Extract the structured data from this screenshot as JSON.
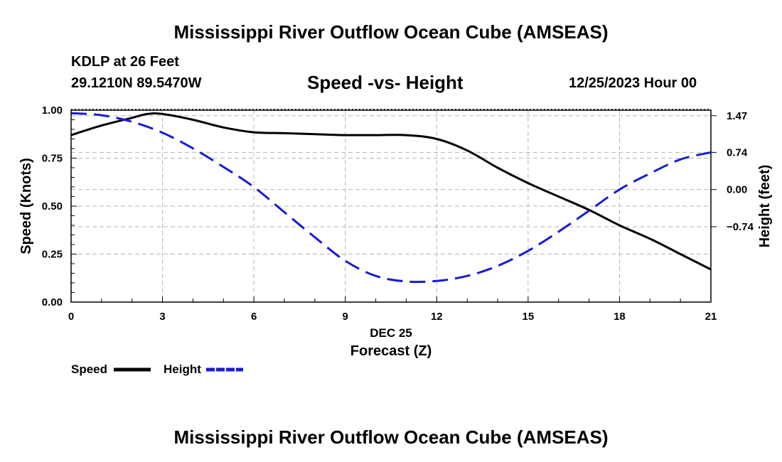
{
  "page": {
    "title": "Mississippi River Outflow Ocean Cube (AMSEAS)",
    "footer_title": "Mississippi River Outflow Ocean Cube (AMSEAS)",
    "station": "KDLP at 26 Feet",
    "coords": "29.1210N  89.5470W",
    "datetime": "12/25/2023 Hour 00"
  },
  "legend": {
    "speed_label": "Speed",
    "height_label": "Height"
  },
  "colors": {
    "speed": "#000000",
    "height": "#1a1ad6",
    "grid": "#b4b4b4"
  },
  "chart_data": {
    "type": "line",
    "title": "Speed -vs- Height",
    "xlabel": "Forecast (Z)",
    "x_sublabel": "DEC 25",
    "ylabel": "Speed (Knots)",
    "y2label": "Height (feet)",
    "xlim": [
      0,
      21
    ],
    "ylim": [
      0,
      1
    ],
    "y2lim": [
      -2.24,
      1.58
    ],
    "x_ticks": [
      0,
      3,
      6,
      9,
      12,
      15,
      18,
      21
    ],
    "x_tick_labels": [
      "0",
      "3",
      "6",
      "9",
      "12",
      "15",
      "18",
      "21"
    ],
    "y_ticks": [
      0,
      0.25,
      0.5,
      0.75,
      1.0
    ],
    "y_tick_labels": [
      "0.00",
      "0.25",
      "0.50",
      "0.75",
      "1.00"
    ],
    "y2_ticks": [
      1.47,
      0.74,
      0.0,
      -0.74
    ],
    "y2_tick_labels": [
      "1.47",
      "0.74",
      "0.00",
      "−0.74"
    ],
    "grid": true,
    "series": [
      {
        "name": "Speed",
        "axis": "left",
        "style": "solid",
        "x": [
          0,
          1,
          2,
          2.5,
          3,
          4,
          5,
          6,
          7,
          8,
          9,
          10,
          11,
          12,
          13,
          14,
          15,
          16,
          17,
          18,
          19,
          20,
          21
        ],
        "y": [
          0.87,
          0.92,
          0.96,
          0.98,
          0.98,
          0.95,
          0.91,
          0.885,
          0.88,
          0.875,
          0.87,
          0.87,
          0.87,
          0.85,
          0.79,
          0.7,
          0.62,
          0.55,
          0.48,
          0.4,
          0.33,
          0.25,
          0.17
        ]
      },
      {
        "name": "Height",
        "axis": "right",
        "style": "dashed",
        "x": [
          0,
          1,
          2,
          3,
          4,
          5,
          6,
          7,
          8,
          9,
          10,
          11,
          12,
          13,
          14,
          15,
          16,
          17,
          18,
          19,
          20,
          21
        ],
        "y": [
          1.52,
          1.48,
          1.35,
          1.13,
          0.82,
          0.45,
          0.05,
          -0.45,
          -0.95,
          -1.42,
          -1.72,
          -1.83,
          -1.82,
          -1.72,
          -1.52,
          -1.22,
          -0.84,
          -0.42,
          0.0,
          0.32,
          0.6,
          0.74
        ]
      }
    ]
  }
}
